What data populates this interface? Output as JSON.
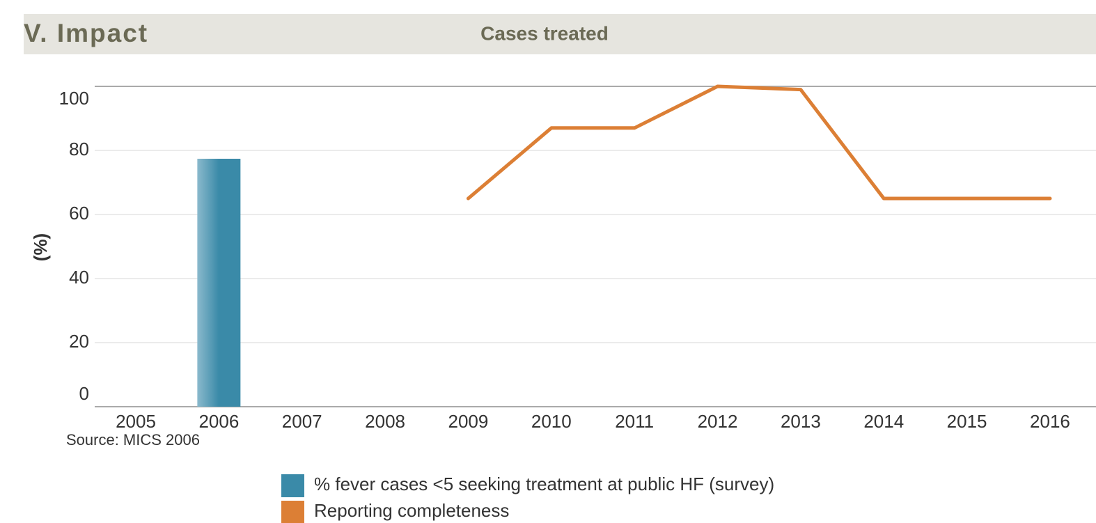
{
  "header": {
    "section": "V. Impact"
  },
  "chart_data": {
    "type": "bar",
    "title": "Cases treated",
    "ylabel": "(%)",
    "annotation": "Source: MICS 2006",
    "categories": [
      "2005",
      "2006",
      "2007",
      "2008",
      "2009",
      "2010",
      "2011",
      "2012",
      "2013",
      "2014",
      "2015",
      "2016"
    ],
    "series": [
      {
        "name": "% fever cases <5 seeking treatment at public HF (survey)",
        "type": "bar",
        "color": "#3a8aa8",
        "values": [
          null,
          77.4,
          null,
          null,
          null,
          null,
          null,
          null,
          null,
          null,
          null,
          null
        ]
      },
      {
        "name": "Reporting completeness",
        "type": "line",
        "color": "#dc7f35",
        "values": [
          null,
          null,
          null,
          null,
          65,
          87,
          87,
          100,
          99,
          65,
          65,
          65
        ]
      }
    ],
    "ylim": [
      0,
      100
    ],
    "yticks": [
      0,
      20,
      40,
      60,
      80,
      100
    ],
    "grid": true
  }
}
